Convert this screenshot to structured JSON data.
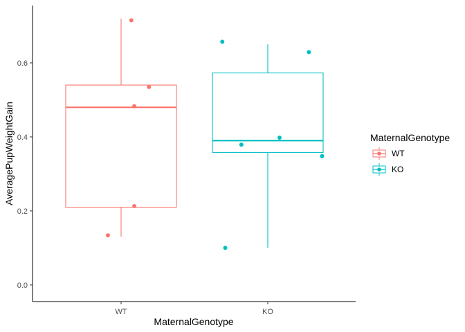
{
  "chart_data": {
    "type": "boxplot",
    "xlabel": "MaternalGenotype",
    "ylabel": "AveragePupWeightGain",
    "categories": [
      "WT",
      "KO"
    ],
    "ylim": [
      -0.045,
      0.755
    ],
    "yticks": [
      0.0,
      0.2,
      0.4,
      0.6
    ],
    "ytick_labels": [
      "0.0",
      "0.2",
      "0.4",
      "0.6"
    ],
    "grid": false,
    "legend": {
      "title": "MaternalGenotype",
      "position": "right",
      "entries": [
        "WT",
        "KO"
      ]
    },
    "series": [
      {
        "name": "WT",
        "color": "#F8766D",
        "box": {
          "min": 0.13,
          "q1": 0.21,
          "median": 0.48,
          "q3": 0.54,
          "max": 0.72
        },
        "points": [
          {
            "x_jitter": 0.07,
            "y": 0.715
          },
          {
            "x_jitter": 0.19,
            "y": 0.535
          },
          {
            "x_jitter": 0.09,
            "y": 0.483
          },
          {
            "x_jitter": 0.09,
            "y": 0.213
          },
          {
            "x_jitter": -0.09,
            "y": 0.134
          }
        ]
      },
      {
        "name": "KO",
        "color": "#00BFC4",
        "box": {
          "min": 0.1,
          "q1": 0.358,
          "median": 0.39,
          "q3": 0.573,
          "max": 0.65
        },
        "points": [
          {
            "x_jitter": -0.31,
            "y": 0.657
          },
          {
            "x_jitter": 0.28,
            "y": 0.629
          },
          {
            "x_jitter": 0.08,
            "y": 0.398
          },
          {
            "x_jitter": -0.18,
            "y": 0.379
          },
          {
            "x_jitter": 0.37,
            "y": 0.348
          },
          {
            "x_jitter": -0.29,
            "y": 0.1
          }
        ]
      }
    ]
  }
}
